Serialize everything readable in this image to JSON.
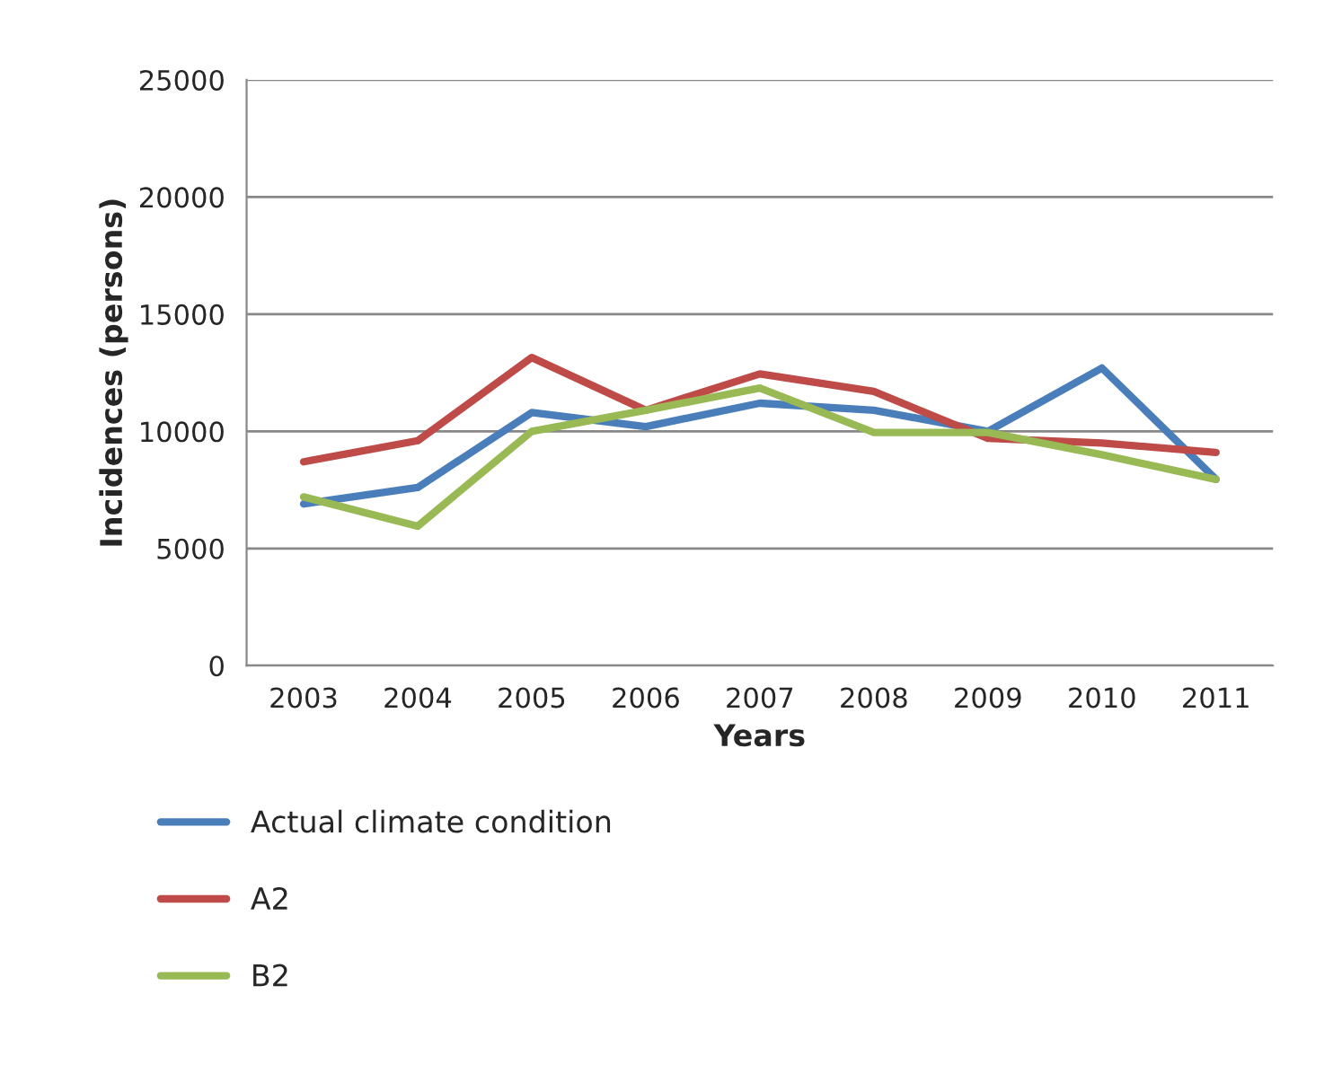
{
  "chart_data": {
    "type": "line",
    "xlabel": "Years",
    "ylabel": "Incidences (persons)",
    "categories": [
      "2003",
      "2004",
      "2005",
      "2006",
      "2007",
      "2008",
      "2009",
      "2010",
      "2011"
    ],
    "series": [
      {
        "name": "Actual climate condition",
        "color": "#4a7ebb",
        "values": [
          6900,
          7600,
          10800,
          10200,
          11200,
          10900,
          10000,
          12700,
          7950
        ]
      },
      {
        "name": "A2",
        "color": "#be4b48",
        "values": [
          8700,
          9600,
          13150,
          10900,
          12450,
          11700,
          9700,
          9500,
          9100
        ]
      },
      {
        "name": "B2",
        "color": "#98b954",
        "values": [
          7200,
          5950,
          10000,
          10900,
          11850,
          9950,
          9950,
          9000,
          7950
        ]
      }
    ],
    "ylim": [
      0,
      25000
    ],
    "yticks": [
      0,
      5000,
      10000,
      15000,
      20000,
      25000
    ],
    "grid": "y",
    "legend": "bottom",
    "marker": "none",
    "line_style": "solid"
  }
}
